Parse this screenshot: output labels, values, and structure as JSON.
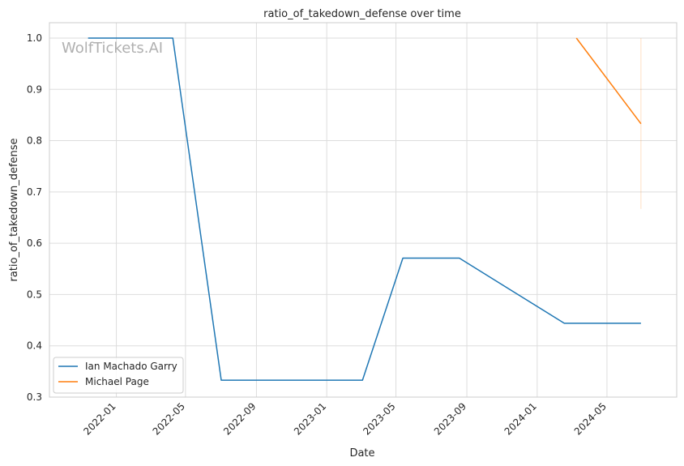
{
  "chart_data": {
    "type": "line",
    "title": "ratio_of_takedown_defense over time",
    "xlabel": "Date",
    "ylabel": "ratio_of_takedown_defense",
    "watermark": "WolfTickets.AI",
    "x_type": "date",
    "xlim": [
      "2021-09-07",
      "2024-08-30"
    ],
    "ylim": [
      0.3,
      1.03
    ],
    "x_ticks": [
      "2022-01-01",
      "2022-05-01",
      "2022-09-01",
      "2023-01-01",
      "2023-05-01",
      "2023-09-01",
      "2024-01-01",
      "2024-05-01"
    ],
    "x_tick_labels": [
      "2022-01",
      "2022-05",
      "2022-09",
      "2023-01",
      "2023-05",
      "2023-09",
      "2024-01",
      "2024-05"
    ],
    "y_ticks": [
      0.3,
      0.4,
      0.5,
      0.6,
      0.7,
      0.8,
      0.9,
      1.0
    ],
    "y_tick_labels": [
      "0.3",
      "0.4",
      "0.5",
      "0.6",
      "0.7",
      "0.8",
      "0.9",
      "1.0"
    ],
    "grid": true,
    "legend_position": "lower-left",
    "series": [
      {
        "name": "Ian Machado Garry",
        "color": "#1f77b4",
        "points": [
          {
            "x": "2021-11-13",
            "y": 1.0
          },
          {
            "x": "2022-04-09",
            "y": 1.0
          },
          {
            "x": "2022-07-02",
            "y": 0.333
          },
          {
            "x": "2023-03-04",
            "y": 0.333
          },
          {
            "x": "2023-05-13",
            "y": 0.571
          },
          {
            "x": "2023-08-19",
            "y": 0.571
          },
          {
            "x": "2024-02-17",
            "y": 0.444
          },
          {
            "x": "2024-06-29",
            "y": 0.444
          }
        ]
      },
      {
        "name": "Michael Page",
        "color": "#ff7f0e",
        "points": [
          {
            "x": "2024-03-09",
            "y": 1.0
          },
          {
            "x": "2024-06-29",
            "y": 0.833
          }
        ],
        "band": {
          "x": "2024-06-29",
          "low": 0.667,
          "high": 1.0
        }
      }
    ]
  }
}
